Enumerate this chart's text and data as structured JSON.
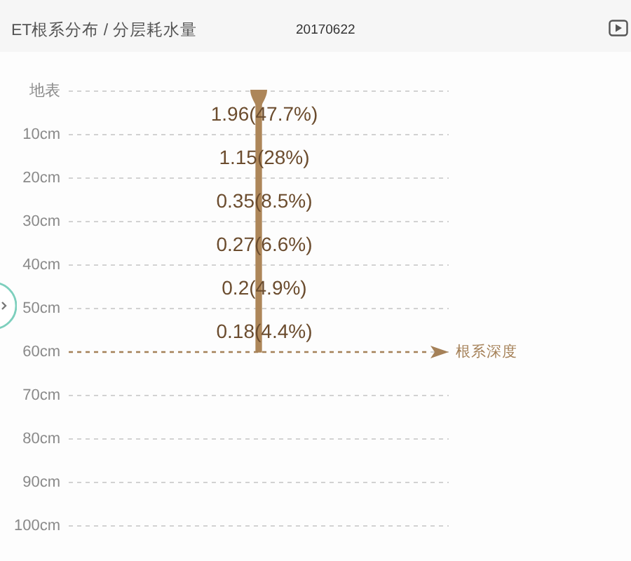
{
  "chart_data": {
    "type": "bar",
    "title": "ET根系分布 / 分层耗水量",
    "subtitle": "20170622",
    "categories": [
      null
    ],
    "values": [
      60
    ],
    "color": "#ad8659",
    "ylim": [
      100,
      0
    ],
    "yticks": [
      {
        "value": 0,
        "label": "地表"
      },
      {
        "value": 10,
        "label": "10cm"
      },
      {
        "value": 20,
        "label": "20cm"
      },
      {
        "value": 30,
        "label": "30cm"
      },
      {
        "value": 40,
        "label": "40cm"
      },
      {
        "value": 50,
        "label": "50cm"
      },
      {
        "value": 60,
        "label": "60cm"
      },
      {
        "value": 70,
        "label": "70cm"
      },
      {
        "value": 80,
        "label": "80cm"
      },
      {
        "value": 90,
        "label": "90cm"
      },
      {
        "value": 100,
        "label": "100cm"
      }
    ],
    "grid": "y",
    "ref_lines": [
      {
        "axis": "y",
        "value": 60,
        "label": "根系深度",
        "color": "#a58158",
        "line_style": "dashed"
      }
    ],
    "annotations": [
      "1.96(47.7%)",
      "1.15(28%)",
      "0.35(8.5%)",
      "0.27(6.6%)",
      "0.2(4.9%)",
      "0.18(4.4%)"
    ]
  }
}
